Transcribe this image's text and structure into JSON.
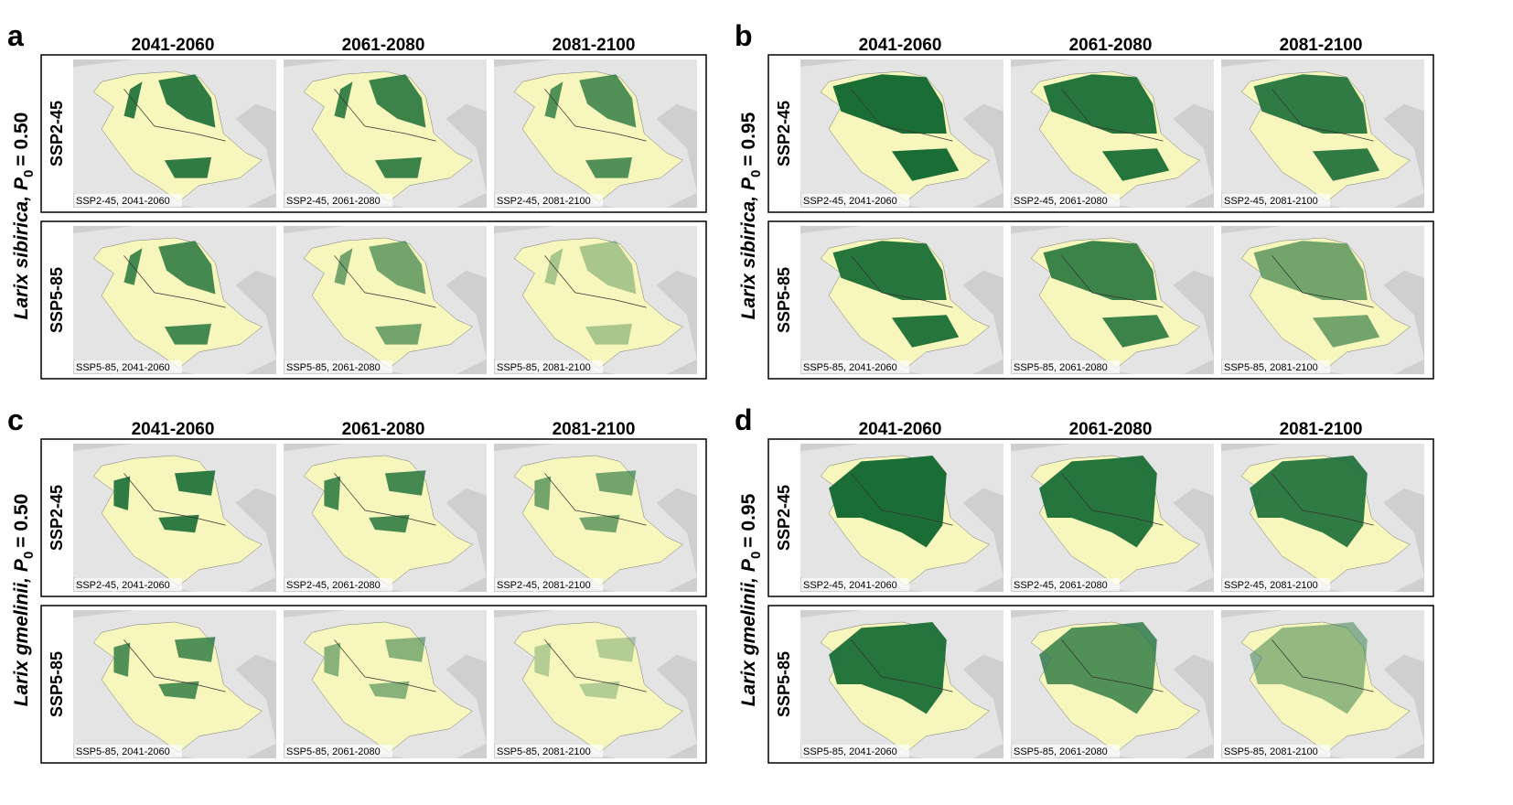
{
  "panels": [
    {
      "letter": "a",
      "species": "Larix sibirica,",
      "p_symbol": "P",
      "p_sub": "0",
      "p_value": "= 0.50",
      "columns": [
        "2041-2060",
        "2061-2080",
        "2081-2100"
      ],
      "rows": [
        {
          "label": "SSP2-45",
          "captions": [
            "SSP2-45, 2041-2060",
            "SSP2-45, 2061-2080",
            "SSP2-45, 2081-2100"
          ]
        },
        {
          "label": "SSP5-85",
          "captions": [
            "SSP5-85, 2041-2060",
            "SSP5-85, 2061-2080",
            "SSP5-85, 2081-2100"
          ]
        }
      ]
    },
    {
      "letter": "b",
      "species": "Larix sibirica,",
      "p_symbol": "P",
      "p_sub": "0",
      "p_value": "= 0.95",
      "columns": [
        "2041-2060",
        "2061-2080",
        "2081-2100"
      ],
      "rows": [
        {
          "label": "SSP2-45",
          "captions": [
            "SSP2-45, 2041-2060",
            "SSP2-45, 2061-2080",
            "SSP2-45, 2081-2100"
          ]
        },
        {
          "label": "SSP5-85",
          "captions": [
            "SSP5-85, 2041-2060",
            "SSP5-85, 2061-2080",
            "SSP5-85, 2081-2100"
          ]
        }
      ]
    },
    {
      "letter": "c",
      "species": "Larix gmelinii,",
      "p_symbol": "P",
      "p_sub": "0",
      "p_value": "= 0.50",
      "columns": [
        "2041-2060",
        "2061-2080",
        "2081-2100"
      ],
      "rows": [
        {
          "label": "SSP2-45",
          "captions": [
            "SSP2-45, 2041-2060",
            "SSP2-45, 2061-2080",
            "SSP2-45, 2081-2100"
          ]
        },
        {
          "label": "SSP5-85",
          "captions": [
            "SSP5-85, 2041-2060",
            "SSP5-85, 2061-2080",
            "SSP5-85, 2081-2100"
          ]
        }
      ]
    },
    {
      "letter": "d",
      "species": "Larix gmelinii,",
      "p_symbol": "P",
      "p_sub": "0",
      "p_value": "= 0.95",
      "columns": [
        "2041-2060",
        "2061-2080",
        "2081-2100"
      ],
      "rows": [
        {
          "label": "SSP2-45",
          "captions": [
            "SSP2-45, 2041-2060",
            "SSP2-45, 2061-2080",
            "SSP2-45, 2081-2100"
          ]
        },
        {
          "label": "SSP5-85",
          "captions": [
            "SSP5-85, 2041-2060",
            "SSP5-85, 2061-2080",
            "SSP5-85, 2081-2100"
          ]
        }
      ]
    }
  ]
}
